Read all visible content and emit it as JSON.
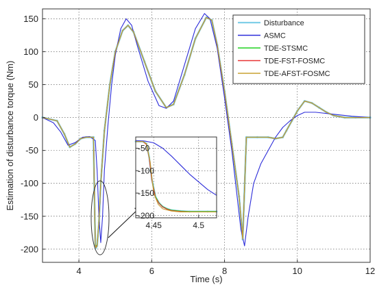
{
  "chart_data": [
    {
      "type": "line",
      "title": "",
      "xlabel": "Time (s)",
      "ylabel": "Estimation of disturbance torque (Nm)",
      "xlim": [
        3,
        12
      ],
      "ylim": [
        -220,
        165
      ],
      "xticks": [
        4,
        6,
        8,
        10,
        12
      ],
      "yticks": [
        -200,
        -150,
        -100,
        -50,
        0,
        50,
        100,
        150
      ],
      "xtick_labels": [
        "4",
        "6",
        "8",
        "10",
        "12"
      ],
      "ytick_labels": [
        "-200",
        "-150",
        "-100",
        "-50",
        "0",
        "50",
        "100",
        "150"
      ],
      "grid": true,
      "legend_position": "top-right",
      "series": [
        {
          "name": "Disturbance",
          "color": "#7fcfe8",
          "x": [
            3.0,
            3.4,
            3.6,
            3.75,
            3.9,
            4.05,
            4.2,
            4.4,
            4.45,
            4.47,
            4.5,
            4.55,
            4.6,
            4.7,
            4.85,
            5.0,
            5.2,
            5.35,
            5.5,
            5.8,
            6.1,
            6.4,
            6.6,
            6.9,
            7.2,
            7.5,
            7.65,
            7.8,
            8.0,
            8.2,
            8.4,
            8.5,
            8.6,
            8.9,
            9.2,
            9.4,
            9.6,
            9.7,
            9.85,
            10.0,
            10.2,
            10.4,
            10.6,
            10.8,
            11.0,
            11.3,
            11.6,
            12.0
          ],
          "y": [
            0,
            -5,
            -25,
            -45,
            -40,
            -32,
            -30,
            -30,
            -195,
            -198,
            -195,
            -160,
            -100,
            -20,
            50,
            100,
            132,
            140,
            130,
            85,
            40,
            15,
            20,
            65,
            120,
            152,
            148,
            110,
            40,
            -40,
            -120,
            -185,
            -30,
            -30,
            -30,
            -32,
            -30,
            -20,
            -5,
            10,
            25,
            22,
            15,
            8,
            3,
            0,
            0,
            0
          ]
        },
        {
          "name": "ASMC",
          "color": "#2b2bd9",
          "x": [
            3.0,
            3.3,
            3.5,
            3.7,
            3.9,
            4.1,
            4.3,
            4.45,
            4.5,
            4.55,
            4.6,
            4.65,
            4.7,
            4.8,
            4.9,
            5.0,
            5.15,
            5.3,
            5.45,
            5.6,
            5.9,
            6.2,
            6.4,
            6.6,
            6.9,
            7.2,
            7.45,
            7.6,
            7.8,
            8.0,
            8.2,
            8.45,
            8.55,
            8.65,
            8.8,
            9.0,
            9.2,
            9.4,
            9.6,
            9.8,
            10.0,
            10.2,
            10.5,
            11.0,
            11.5,
            12.0
          ],
          "y": [
            0,
            -8,
            -22,
            -42,
            -38,
            -30,
            -29,
            -35,
            -80,
            -150,
            -190,
            -150,
            -80,
            -10,
            50,
            95,
            135,
            150,
            140,
            110,
            55,
            18,
            14,
            25,
            80,
            135,
            158,
            150,
            105,
            30,
            -50,
            -170,
            -195,
            -150,
            -100,
            -70,
            -50,
            -30,
            -15,
            -5,
            3,
            8,
            8,
            5,
            2,
            0
          ]
        },
        {
          "name": "TDE-STSMC",
          "color": "#1fd21f",
          "x": [
            3.0,
            3.4,
            3.6,
            3.75,
            3.9,
            4.05,
            4.2,
            4.4,
            4.45,
            4.47,
            4.5,
            4.55,
            4.6,
            4.7,
            4.85,
            5.0,
            5.2,
            5.35,
            5.5,
            5.8,
            6.1,
            6.4,
            6.6,
            6.9,
            7.2,
            7.5,
            7.65,
            7.8,
            8.0,
            8.2,
            8.4,
            8.5,
            8.6,
            8.9,
            9.2,
            9.4,
            9.6,
            9.7,
            9.85,
            10.0,
            10.2,
            10.4,
            10.6,
            10.8,
            11.0,
            11.3,
            11.6,
            12.0
          ],
          "y": [
            0,
            -5,
            -25,
            -45,
            -40,
            -32,
            -30,
            -30,
            -193,
            -196,
            -193,
            -158,
            -100,
            -20,
            50,
            100,
            132,
            140,
            130,
            85,
            40,
            15,
            20,
            65,
            120,
            152,
            148,
            110,
            40,
            -40,
            -120,
            -183,
            -30,
            -30,
            -30,
            -32,
            -30,
            -20,
            -5,
            10,
            25,
            22,
            15,
            8,
            3,
            0,
            0,
            0
          ]
        },
        {
          "name": "TDE-FST-FOSMC",
          "color": "#e83232",
          "x": [
            3.0,
            3.4,
            3.6,
            3.75,
            3.9,
            4.05,
            4.2,
            4.4,
            4.45,
            4.47,
            4.5,
            4.55,
            4.6,
            4.7,
            4.85,
            5.0,
            5.2,
            5.35,
            5.5,
            5.8,
            6.1,
            6.4,
            6.6,
            6.9,
            7.2,
            7.5,
            7.65,
            7.8,
            8.0,
            8.2,
            8.4,
            8.5,
            8.6,
            8.9,
            9.2,
            9.4,
            9.6,
            9.7,
            9.85,
            10.0,
            10.2,
            10.4,
            10.6,
            10.8,
            11.0,
            11.3,
            11.6,
            12.0
          ],
          "y": [
            0,
            -5,
            -25,
            -45,
            -40,
            -32,
            -30,
            -30,
            -194,
            -197,
            -194,
            -159,
            -100,
            -20,
            50,
            100,
            132,
            140,
            130,
            85,
            40,
            15,
            20,
            65,
            120,
            152,
            148,
            110,
            40,
            -40,
            -120,
            -184,
            -30,
            -30,
            -30,
            -32,
            -30,
            -20,
            -5,
            10,
            25,
            22,
            15,
            8,
            3,
            0,
            0,
            0
          ]
        },
        {
          "name": "TDE-AFST-FOSMC",
          "color": "#c8a030",
          "x": [
            3.0,
            3.4,
            3.6,
            3.75,
            3.9,
            4.05,
            4.2,
            4.4,
            4.45,
            4.47,
            4.5,
            4.55,
            4.6,
            4.7,
            4.85,
            5.0,
            5.2,
            5.35,
            5.5,
            5.8,
            6.1,
            6.4,
            6.6,
            6.9,
            7.2,
            7.5,
            7.65,
            7.8,
            8.0,
            8.2,
            8.4,
            8.5,
            8.6,
            8.9,
            9.2,
            9.4,
            9.6,
            9.7,
            9.85,
            10.0,
            10.2,
            10.4,
            10.6,
            10.8,
            11.0,
            11.3,
            11.6,
            12.0
          ],
          "y": [
            0,
            -5,
            -25,
            -45,
            -40,
            -32,
            -30,
            -30,
            -195,
            -198,
            -195,
            -160,
            -100,
            -20,
            50,
            100,
            132,
            140,
            130,
            85,
            40,
            15,
            20,
            65,
            120,
            152,
            148,
            110,
            40,
            -40,
            -120,
            -185,
            -30,
            -30,
            -30,
            -32,
            -30,
            -20,
            -5,
            10,
            25,
            22,
            15,
            8,
            3,
            0,
            0,
            0
          ]
        }
      ]
    },
    {
      "type": "line",
      "title": "",
      "xlabel": "",
      "ylabel": "",
      "xlim": [
        4.43,
        4.52
      ],
      "ylim": [
        -205,
        -25
      ],
      "xticks": [
        4.45,
        4.5
      ],
      "yticks": [
        -200,
        -150,
        -100,
        -50
      ],
      "xtick_labels": [
        "4.45",
        "4.5"
      ],
      "ytick_labels": [
        "-200",
        "-150",
        "-100",
        "-50"
      ],
      "grid": true,
      "series": [
        {
          "name": "Disturbance",
          "color": "#7fcfe8",
          "x": [
            4.43,
            4.438,
            4.442,
            4.445,
            4.448,
            4.452,
            4.456,
            4.46,
            4.465,
            4.47,
            4.48,
            4.49,
            4.5,
            4.51,
            4.52
          ],
          "y": [
            -35,
            -35,
            -40,
            -70,
            -120,
            -158,
            -172,
            -180,
            -185,
            -188,
            -190,
            -191,
            -191,
            -191,
            -191
          ]
        },
        {
          "name": "ASMC",
          "color": "#2b2bd9",
          "x": [
            4.43,
            4.44,
            4.45,
            4.46,
            4.47,
            4.48,
            4.49,
            4.5,
            4.51,
            4.52
          ],
          "y": [
            -33,
            -34,
            -38,
            -50,
            -68,
            -88,
            -108,
            -125,
            -142,
            -155
          ]
        },
        {
          "name": "TDE-STSMC",
          "color": "#1fd21f",
          "x": [
            4.43,
            4.438,
            4.442,
            4.445,
            4.448,
            4.452,
            4.456,
            4.46,
            4.465,
            4.47,
            4.48,
            4.49,
            4.5,
            4.51,
            4.52
          ],
          "y": [
            -35,
            -35,
            -40,
            -70,
            -120,
            -158,
            -172,
            -180,
            -185,
            -188,
            -190,
            -191,
            -191,
            -191,
            -191
          ]
        },
        {
          "name": "TDE-FST-FOSMC",
          "color": "#e83232",
          "x": [
            4.43,
            4.438,
            4.442,
            4.445,
            4.448,
            4.452,
            4.456,
            4.46,
            4.465,
            4.47,
            4.48,
            4.49,
            4.5,
            4.51,
            4.52
          ],
          "y": [
            -35,
            -35,
            -42,
            -72,
            -122,
            -160,
            -173,
            -181,
            -186,
            -189,
            -191,
            -192,
            -192,
            -192,
            -192
          ]
        },
        {
          "name": "TDE-AFST-FOSMC",
          "color": "#c8a030",
          "x": [
            4.43,
            4.438,
            4.442,
            4.446,
            4.45,
            4.455,
            4.46,
            4.47,
            4.48,
            4.49,
            4.5,
            4.51,
            4.52
          ],
          "y": [
            -35,
            -35,
            -40,
            -80,
            -150,
            -175,
            -185,
            -190,
            -192,
            -192,
            -192,
            -192,
            -192
          ]
        }
      ]
    }
  ]
}
